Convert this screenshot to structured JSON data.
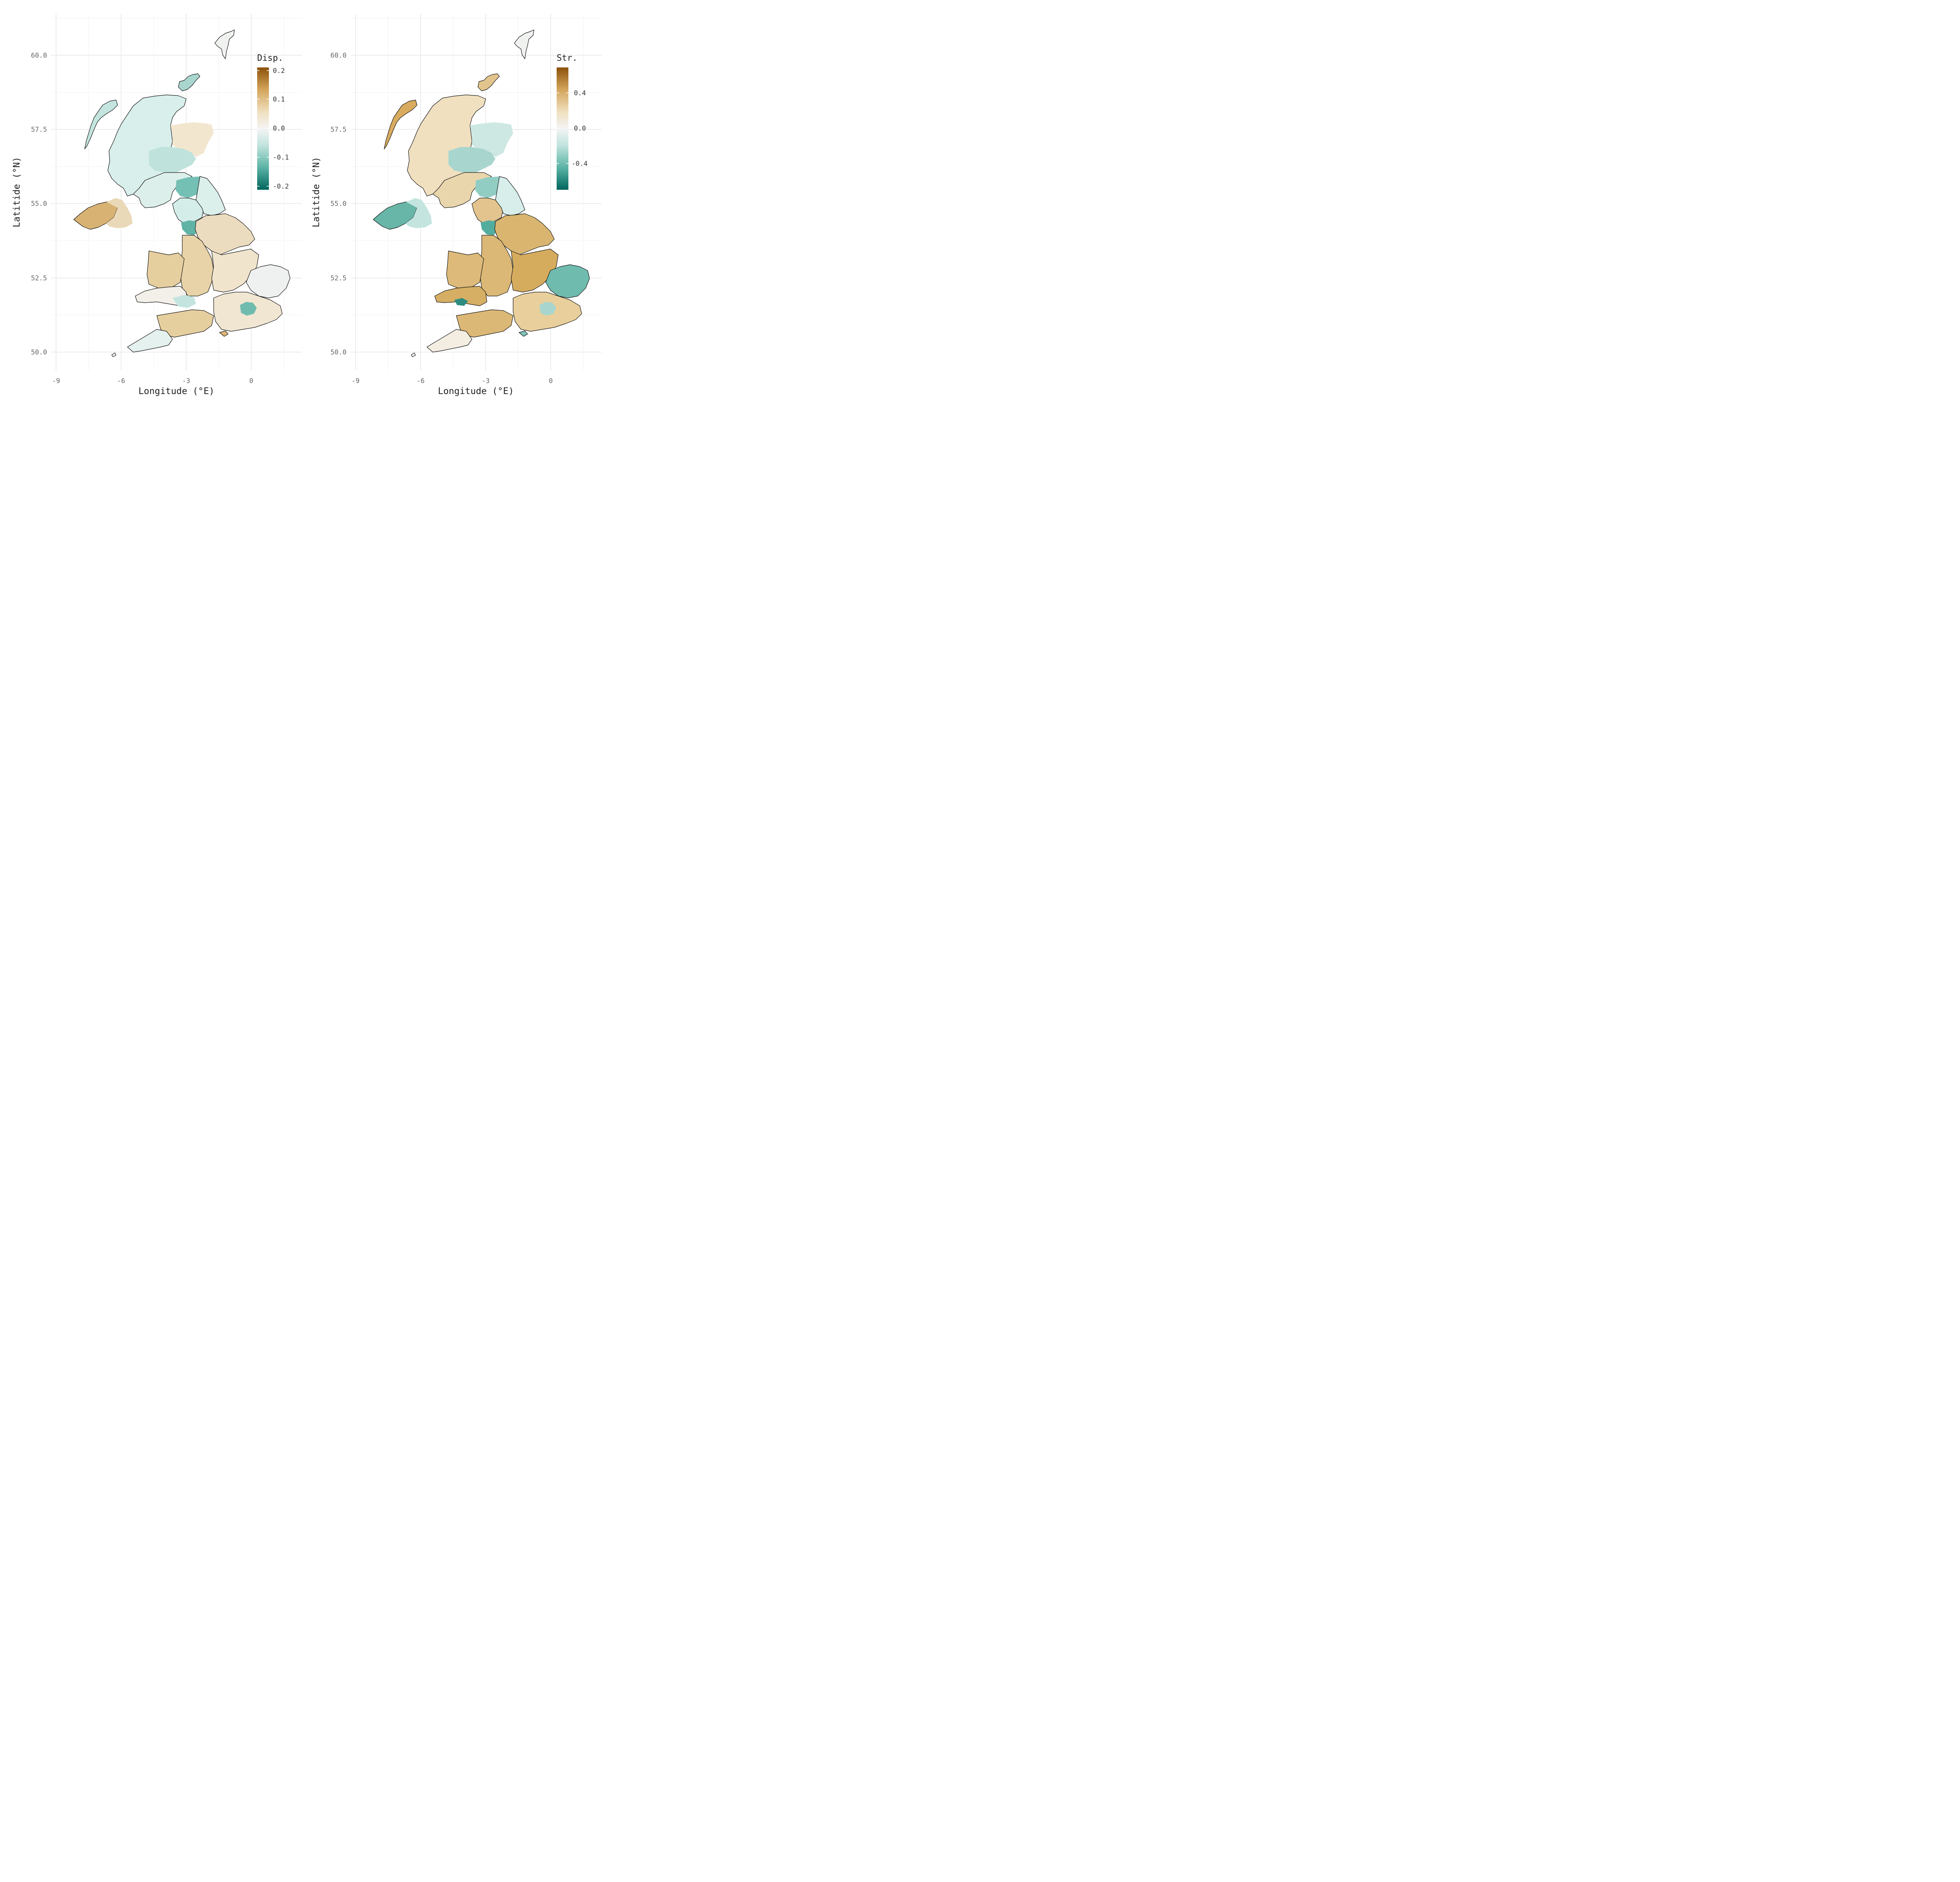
{
  "panels": [
    {
      "legend": {
        "title": "Disp.",
        "ticks": [
          "0.2",
          "0.1",
          "0.0",
          "-0.1",
          "-0.2"
        ]
      },
      "axes": {
        "xlabel": "Longitude (°E)",
        "ylabel": "Latitide (°N)",
        "xticks": [
          "-9",
          "-6",
          "-3",
          "0"
        ],
        "yticks": [
          "60.0",
          "57.5",
          "55.0",
          "52.5",
          "50.0"
        ]
      },
      "regions": {
        "shetland": "#f0f2f0",
        "orkney": "#a8d6cf",
        "hebrides": "#c4e5df",
        "highlands": "#d8efeb",
        "perth": "#bfe2dc",
        "aberdeen": "#f2e6cf",
        "southern_scotland": "#dcefeb",
        "borders": "#75c0b4",
        "ni_west": "#d8b273",
        "ni_east": "#ead9b8",
        "cumbria": "#d4ede9",
        "lancashire": "#60b3a5",
        "yorkshire": "#ecdcbf",
        "north_england_east": "#dbefeb",
        "midlands_west": "#e8d3a8",
        "midlands_east": "#f0e4cd",
        "east_anglia": "#eef1ef",
        "wales_north": "#e6cf9f",
        "wales_south": "#f3efe9",
        "south_wales_coast": "#c4e5df",
        "london": "#6fbcaf",
        "south_east": "#f0e6d2",
        "south_west": "#e6cf9f",
        "cornwall": "#e5f1ee",
        "isle_of_wight": "#dcb877"
      }
    },
    {
      "legend": {
        "title": "Str.",
        "ticks": [
          "0.4",
          "0.0",
          "-0.4"
        ]
      },
      "axes": {
        "xlabel": "Longitude (°E)",
        "ylabel": "Latitide (°N)",
        "xticks": [
          "-9",
          "-6",
          "-3",
          "0"
        ],
        "yticks": [
          "60.0",
          "57.5",
          "55.0",
          "52.5",
          "50.0"
        ]
      },
      "regions": {
        "shetland": "#f0f2f0",
        "orkney": "#e2c48d",
        "hebrides": "#d8ab5f",
        "highlands": "#f0e0c0",
        "perth": "#a8d6cf",
        "aberdeen": "#cde8e3",
        "southern_scotland": "#ead6ad",
        "borders": "#92cdc4",
        "ni_west": "#67b6a8",
        "ni_east": "#c4e5df",
        "cumbria": "#e3c48e",
        "lancashire": "#53ad9e",
        "yorkshire": "#d9b570",
        "north_england_east": "#d7eeea",
        "midlands_west": "#dcb877",
        "midlands_east": "#d5ac5e",
        "east_anglia": "#6fbcaf",
        "wales_north": "#ddba79",
        "wales_south": "#d6ae64",
        "south_wales_coast": "#2c8c80",
        "london": "#a8d6cf",
        "south_east": "#e8cf9c",
        "south_west": "#dcb877",
        "cornwall": "#f3ede2",
        "isle_of_wight": "#7fc4b9"
      }
    }
  ]
}
